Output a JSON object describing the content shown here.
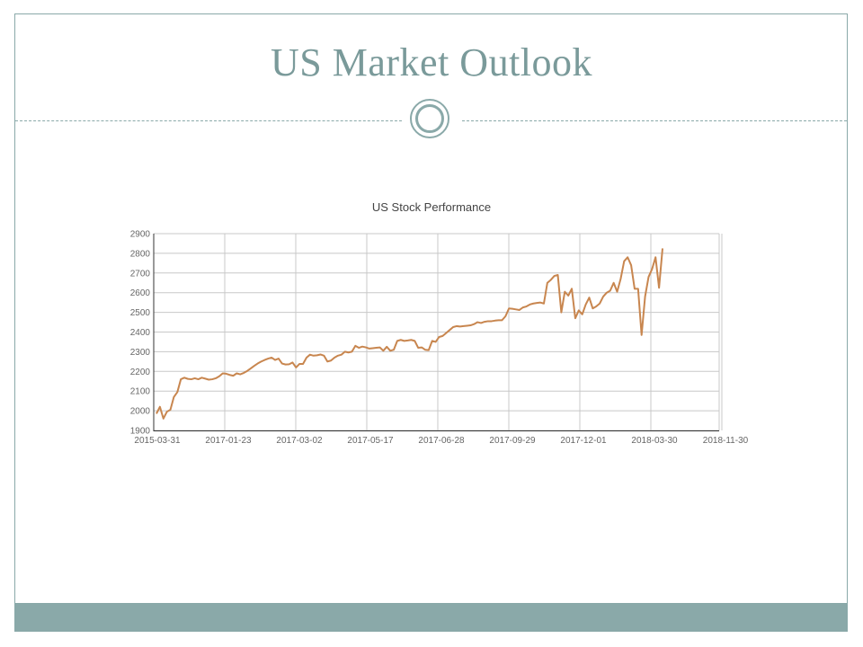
{
  "slide": {
    "title": "US Market  Outlook"
  },
  "colors": {
    "accent": "#8aa9a9",
    "title": "#7a9a9a",
    "line": "#c8864f",
    "grid": "#c8c8c8"
  },
  "chart_data": {
    "type": "line",
    "title": "US Stock Performance",
    "xlabel": "",
    "ylabel": "",
    "ylim": [
      1900,
      2900
    ],
    "yticks": [
      1900,
      2000,
      2100,
      2200,
      2300,
      2400,
      2500,
      2600,
      2700,
      2800,
      2900
    ],
    "xticks": [
      "2015-03-31",
      "2017-01-23",
      "2017-03-02",
      "2017-05-17",
      "2017-06-28",
      "2017-09-29",
      "2017-12-01",
      "2018-03-30",
      "2018-11-30"
    ],
    "grid": true,
    "legend": "none",
    "series": [
      {
        "values": [
          1985,
          2020,
          1960,
          1995,
          2005,
          2070,
          2095,
          2160,
          2168,
          2162,
          2160,
          2165,
          2160,
          2168,
          2163,
          2158,
          2160,
          2165,
          2175,
          2190,
          2188,
          2182,
          2178,
          2190,
          2185,
          2192,
          2202,
          2215,
          2228,
          2240,
          2250,
          2258,
          2265,
          2270,
          2258,
          2265,
          2240,
          2235,
          2236,
          2245,
          2220,
          2238,
          2238,
          2270,
          2285,
          2280,
          2282,
          2286,
          2280,
          2250,
          2255,
          2270,
          2280,
          2285,
          2300,
          2296,
          2300,
          2330,
          2320,
          2326,
          2322,
          2316,
          2318,
          2320,
          2322,
          2305,
          2325,
          2305,
          2310,
          2355,
          2360,
          2355,
          2357,
          2360,
          2355,
          2320,
          2322,
          2310,
          2308,
          2355,
          2350,
          2375,
          2380,
          2395,
          2410,
          2425,
          2430,
          2428,
          2430,
          2432,
          2434,
          2440,
          2450,
          2446,
          2452,
          2455,
          2455,
          2458,
          2460,
          2460,
          2480,
          2520,
          2518,
          2515,
          2512,
          2525,
          2530,
          2540,
          2545,
          2548,
          2550,
          2545,
          2650,
          2665,
          2685,
          2690,
          2500,
          2605,
          2585,
          2620,
          2470,
          2510,
          2490,
          2540,
          2575,
          2520,
          2530,
          2545,
          2580,
          2600,
          2610,
          2650,
          2605,
          2670,
          2760,
          2780,
          2740,
          2620,
          2620,
          2385,
          2580,
          2680,
          2720,
          2780,
          2625,
          2825
        ]
      }
    ]
  }
}
